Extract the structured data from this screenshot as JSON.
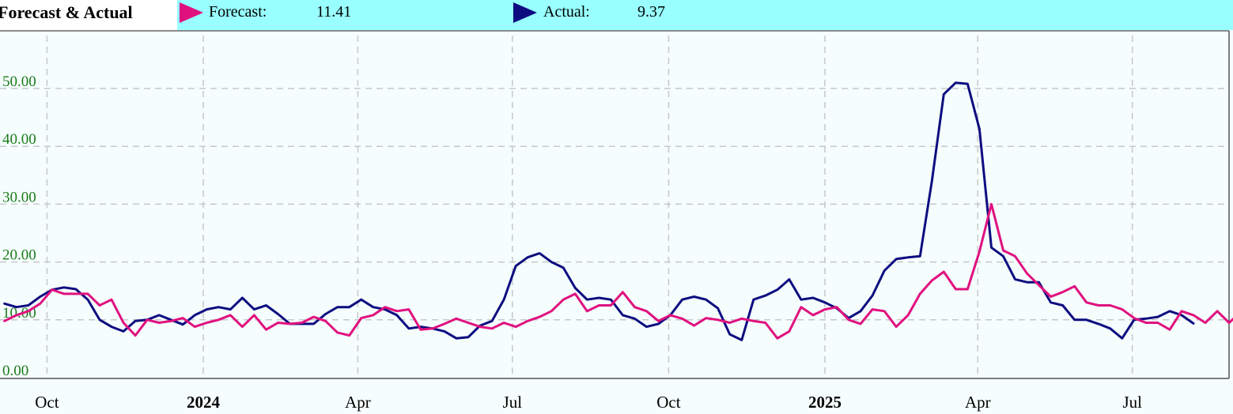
{
  "header": {
    "title": "Forecast & Actual",
    "legend": [
      {
        "label": "Forecast:",
        "value": "11.41",
        "color": "#e0117f",
        "icon": "triangle-right-icon"
      },
      {
        "label": "Actual:",
        "value": "9.37",
        "color": "#0d0d80",
        "icon": "triangle-right-icon"
      }
    ]
  },
  "colors": {
    "header_bg": "#99ffff",
    "plot_bg": "#f5fdfd",
    "grid": "#c8c8c8",
    "ytick": "#1a7a1a"
  },
  "chart_data": {
    "type": "line",
    "x_axis": {
      "type": "date",
      "ticks": [
        {
          "date": "2023-10-01",
          "label": "Oct",
          "bold": false
        },
        {
          "date": "2024-01-01",
          "label": "2024",
          "bold": true
        },
        {
          "date": "2024-04-01",
          "label": "Apr",
          "bold": false
        },
        {
          "date": "2024-07-01",
          "label": "Jul",
          "bold": false
        },
        {
          "date": "2024-10-01",
          "label": "Oct",
          "bold": false
        },
        {
          "date": "2025-01-01",
          "label": "2025",
          "bold": true
        },
        {
          "date": "2025-04-01",
          "label": "Apr",
          "bold": false
        },
        {
          "date": "2025-07-01",
          "label": "Jul",
          "bold": false
        }
      ]
    },
    "y_axis": {
      "ticks": [
        "0.00",
        "10.00",
        "20.00",
        "30.00",
        "40.00",
        "50.00"
      ],
      "ylim": [
        0,
        60
      ],
      "grid": true
    },
    "series": [
      {
        "name": "Actual",
        "color": "#0d0d80",
        "points": [
          [
            "2023-09-06",
            12.8
          ],
          [
            "2023-09-13",
            12.2
          ],
          [
            "2023-09-20",
            12.5
          ],
          [
            "2023-09-27",
            14.0
          ],
          [
            "2023-10-04",
            15.2
          ],
          [
            "2023-10-11",
            15.6
          ],
          [
            "2023-10-18",
            15.3
          ],
          [
            "2023-10-25",
            13.5
          ],
          [
            "2023-11-01",
            10.0
          ],
          [
            "2023-11-08",
            8.8
          ],
          [
            "2023-11-15",
            8.0
          ],
          [
            "2023-11-22",
            9.8
          ],
          [
            "2023-11-29",
            10.0
          ],
          [
            "2023-12-06",
            10.8
          ],
          [
            "2023-12-13",
            10.0
          ],
          [
            "2023-12-20",
            9.2
          ],
          [
            "2023-12-27",
            10.8
          ],
          [
            "2024-01-03",
            11.8
          ],
          [
            "2024-01-10",
            12.2
          ],
          [
            "2024-01-17",
            11.8
          ],
          [
            "2024-01-24",
            13.8
          ],
          [
            "2024-01-31",
            11.8
          ],
          [
            "2024-02-07",
            12.5
          ],
          [
            "2024-02-14",
            11.0
          ],
          [
            "2024-02-21",
            9.3
          ],
          [
            "2024-02-28",
            9.3
          ],
          [
            "2024-03-06",
            9.3
          ],
          [
            "2024-03-13",
            11.0
          ],
          [
            "2024-03-20",
            12.2
          ],
          [
            "2024-03-27",
            12.2
          ],
          [
            "2024-04-03",
            13.5
          ],
          [
            "2024-04-10",
            12.2
          ],
          [
            "2024-04-17",
            11.8
          ],
          [
            "2024-04-24",
            10.8
          ],
          [
            "2024-05-01",
            8.5
          ],
          [
            "2024-05-08",
            8.8
          ],
          [
            "2024-05-15",
            8.5
          ],
          [
            "2024-05-22",
            8.0
          ],
          [
            "2024-05-29",
            6.8
          ],
          [
            "2024-06-05",
            7.0
          ],
          [
            "2024-06-12",
            9.0
          ],
          [
            "2024-06-19",
            9.8
          ],
          [
            "2024-06-26",
            13.5
          ],
          [
            "2024-07-03",
            19.3
          ],
          [
            "2024-07-10",
            20.8
          ],
          [
            "2024-07-17",
            21.5
          ],
          [
            "2024-07-24",
            20.0
          ],
          [
            "2024-07-31",
            19.0
          ],
          [
            "2024-08-07",
            15.5
          ],
          [
            "2024-08-14",
            13.5
          ],
          [
            "2024-08-21",
            13.8
          ],
          [
            "2024-08-28",
            13.5
          ],
          [
            "2024-09-04",
            10.8
          ],
          [
            "2024-09-11",
            10.2
          ],
          [
            "2024-09-18",
            8.8
          ],
          [
            "2024-09-25",
            9.3
          ],
          [
            "2024-10-02",
            10.8
          ],
          [
            "2024-10-09",
            13.5
          ],
          [
            "2024-10-16",
            14.0
          ],
          [
            "2024-10-23",
            13.5
          ],
          [
            "2024-10-30",
            12.0
          ],
          [
            "2024-11-06",
            7.5
          ],
          [
            "2024-11-13",
            6.5
          ],
          [
            "2024-11-20",
            13.5
          ],
          [
            "2024-11-27",
            14.2
          ],
          [
            "2024-12-04",
            15.2
          ],
          [
            "2024-12-11",
            17.0
          ],
          [
            "2024-12-18",
            13.5
          ],
          [
            "2024-12-25",
            13.8
          ],
          [
            "2025-01-01",
            13.0
          ],
          [
            "2025-01-08",
            12.0
          ],
          [
            "2025-01-15",
            10.3
          ],
          [
            "2025-01-22",
            11.5
          ],
          [
            "2025-01-29",
            14.2
          ],
          [
            "2025-02-05",
            18.5
          ],
          [
            "2025-02-12",
            20.5
          ],
          [
            "2025-02-19",
            20.8
          ],
          [
            "2025-02-26",
            21.0
          ],
          [
            "2025-03-05",
            34.0
          ],
          [
            "2025-03-12",
            49.0
          ],
          [
            "2025-03-19",
            51.0
          ],
          [
            "2025-03-26",
            50.8
          ],
          [
            "2025-04-02",
            43.0
          ],
          [
            "2025-04-09",
            22.5
          ],
          [
            "2025-04-16",
            21.0
          ],
          [
            "2025-04-23",
            17.0
          ],
          [
            "2025-04-30",
            16.5
          ],
          [
            "2025-05-07",
            16.5
          ],
          [
            "2025-05-14",
            13.0
          ],
          [
            "2025-05-21",
            12.5
          ],
          [
            "2025-05-28",
            10.0
          ],
          [
            "2025-06-04",
            10.0
          ],
          [
            "2025-06-11",
            9.3
          ],
          [
            "2025-06-18",
            8.5
          ],
          [
            "2025-06-25",
            6.8
          ],
          [
            "2025-07-02",
            10.0
          ],
          [
            "2025-07-09",
            10.2
          ],
          [
            "2025-07-16",
            10.5
          ],
          [
            "2025-07-23",
            11.5
          ],
          [
            "2025-07-30",
            10.8
          ],
          [
            "2025-08-06",
            9.37
          ]
        ]
      },
      {
        "name": "Forecast",
        "color": "#e0117f",
        "points": [
          [
            "2023-09-06",
            9.8
          ],
          [
            "2023-09-13",
            10.8
          ],
          [
            "2023-09-20",
            11.5
          ],
          [
            "2023-09-27",
            12.8
          ],
          [
            "2023-10-04",
            15.2
          ],
          [
            "2023-10-11",
            14.5
          ],
          [
            "2023-10-18",
            14.5
          ],
          [
            "2023-10-25",
            14.5
          ],
          [
            "2023-11-01",
            12.5
          ],
          [
            "2023-11-08",
            13.5
          ],
          [
            "2023-11-15",
            9.5
          ],
          [
            "2023-11-22",
            7.3
          ],
          [
            "2023-11-29",
            10.0
          ],
          [
            "2023-12-06",
            9.5
          ],
          [
            "2023-12-13",
            9.8
          ],
          [
            "2023-12-20",
            10.3
          ],
          [
            "2023-12-27",
            8.8
          ],
          [
            "2024-01-03",
            9.5
          ],
          [
            "2024-01-10",
            10.0
          ],
          [
            "2024-01-17",
            10.8
          ],
          [
            "2024-01-24",
            8.8
          ],
          [
            "2024-01-31",
            10.8
          ],
          [
            "2024-02-07",
            8.3
          ],
          [
            "2024-02-14",
            9.5
          ],
          [
            "2024-02-21",
            9.3
          ],
          [
            "2024-02-28",
            9.5
          ],
          [
            "2024-03-06",
            10.5
          ],
          [
            "2024-03-13",
            9.8
          ],
          [
            "2024-03-20",
            7.8
          ],
          [
            "2024-03-27",
            7.3
          ],
          [
            "2024-04-03",
            10.3
          ],
          [
            "2024-04-10",
            10.8
          ],
          [
            "2024-04-17",
            12.2
          ],
          [
            "2024-04-24",
            11.5
          ],
          [
            "2024-05-01",
            11.8
          ],
          [
            "2024-05-08",
            8.3
          ],
          [
            "2024-05-15",
            8.5
          ],
          [
            "2024-05-22",
            9.3
          ],
          [
            "2024-05-29",
            10.2
          ],
          [
            "2024-06-05",
            9.5
          ],
          [
            "2024-06-12",
            8.8
          ],
          [
            "2024-06-19",
            8.5
          ],
          [
            "2024-06-26",
            9.5
          ],
          [
            "2024-07-03",
            8.8
          ],
          [
            "2024-07-10",
            9.8
          ],
          [
            "2024-07-17",
            10.5
          ],
          [
            "2024-07-24",
            11.5
          ],
          [
            "2024-07-31",
            13.5
          ],
          [
            "2024-08-07",
            14.5
          ],
          [
            "2024-08-14",
            11.5
          ],
          [
            "2024-08-21",
            12.5
          ],
          [
            "2024-08-28",
            12.5
          ],
          [
            "2024-09-04",
            14.8
          ],
          [
            "2024-09-11",
            12.2
          ],
          [
            "2024-09-18",
            11.5
          ],
          [
            "2024-09-25",
            9.8
          ],
          [
            "2024-10-02",
            10.8
          ],
          [
            "2024-10-09",
            10.2
          ],
          [
            "2024-10-16",
            9.0
          ],
          [
            "2024-10-23",
            10.3
          ],
          [
            "2024-10-30",
            10.0
          ],
          [
            "2024-11-06",
            9.5
          ],
          [
            "2024-11-13",
            10.2
          ],
          [
            "2024-11-20",
            9.8
          ],
          [
            "2024-11-27",
            9.5
          ],
          [
            "2024-12-04",
            6.8
          ],
          [
            "2024-12-11",
            8.0
          ],
          [
            "2024-12-18",
            12.2
          ],
          [
            "2024-12-25",
            10.8
          ],
          [
            "2025-01-01",
            11.8
          ],
          [
            "2025-01-08",
            12.2
          ],
          [
            "2025-01-15",
            10.0
          ],
          [
            "2025-01-22",
            9.3
          ],
          [
            "2025-01-29",
            11.8
          ],
          [
            "2025-02-05",
            11.5
          ],
          [
            "2025-02-12",
            8.8
          ],
          [
            "2025-02-19",
            10.8
          ],
          [
            "2025-02-26",
            14.5
          ],
          [
            "2025-03-05",
            16.8
          ],
          [
            "2025-03-12",
            18.3
          ],
          [
            "2025-03-19",
            15.3
          ],
          [
            "2025-03-26",
            15.3
          ],
          [
            "2025-04-02",
            21.8
          ],
          [
            "2025-04-09",
            30.0
          ],
          [
            "2025-04-16",
            22.0
          ],
          [
            "2025-04-23",
            21.0
          ],
          [
            "2025-04-30",
            18.0
          ],
          [
            "2025-05-07",
            16.0
          ],
          [
            "2025-05-14",
            14.0
          ],
          [
            "2025-05-21",
            14.8
          ],
          [
            "2025-05-28",
            15.8
          ],
          [
            "2025-06-04",
            13.0
          ],
          [
            "2025-06-11",
            12.5
          ],
          [
            "2025-06-18",
            12.5
          ],
          [
            "2025-06-25",
            11.8
          ],
          [
            "2025-07-02",
            10.3
          ],
          [
            "2025-07-09",
            9.5
          ],
          [
            "2025-07-16",
            9.5
          ],
          [
            "2025-07-23",
            8.3
          ],
          [
            "2025-07-30",
            11.5
          ],
          [
            "2025-08-06",
            10.8
          ],
          [
            "2025-08-13",
            9.5
          ],
          [
            "2025-08-20",
            11.5
          ],
          [
            "2025-08-27",
            9.5
          ],
          [
            "2025-09-03",
            11.41
          ]
        ]
      }
    ]
  }
}
